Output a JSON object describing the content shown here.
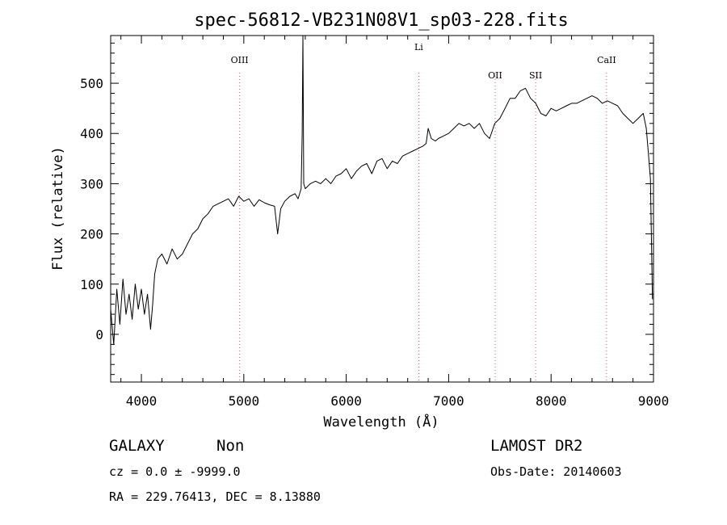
{
  "chart_data": {
    "type": "line",
    "title": "spec-56812-VB231N08V1_sp03-228.fits",
    "xlabel": "Wavelength (Å)",
    "ylabel": "Flux (relative)",
    "xlim": [
      3700,
      9000
    ],
    "ylim": [
      -95,
      595
    ],
    "x_ticks": [
      4000,
      5000,
      6000,
      7000,
      8000,
      9000
    ],
    "x_tick_labels": [
      "4000",
      "5000",
      "6000",
      "7000",
      "8000",
      "9000"
    ],
    "y_ticks": [
      0,
      100,
      200,
      300,
      400,
      500
    ],
    "y_tick_labels": [
      "0",
      "100",
      "200",
      "300",
      "400",
      "500"
    ],
    "grid": false,
    "series": [
      {
        "color": "#000000",
        "x": [
          3700,
          3730,
          3760,
          3790,
          3820,
          3850,
          3880,
          3910,
          3940,
          3970,
          4000,
          4030,
          4060,
          4090,
          4110,
          4130,
          4160,
          4200,
          4250,
          4300,
          4350,
          4400,
          4450,
          4500,
          4550,
          4600,
          4650,
          4700,
          4750,
          4800,
          4850,
          4900,
          4950,
          5000,
          5050,
          5100,
          5150,
          5200,
          5250,
          5300,
          5330,
          5360,
          5400,
          5450,
          5500,
          5530,
          5560,
          5570,
          5577,
          5585,
          5600,
          5650,
          5700,
          5750,
          5800,
          5850,
          5900,
          5950,
          6000,
          6050,
          6100,
          6150,
          6200,
          6250,
          6300,
          6350,
          6400,
          6450,
          6500,
          6550,
          6600,
          6650,
          6700,
          6750,
          6780,
          6800,
          6830,
          6870,
          6900,
          6950,
          7000,
          7050,
          7100,
          7150,
          7200,
          7250,
          7300,
          7350,
          7400,
          7450,
          7500,
          7550,
          7600,
          7650,
          7700,
          7750,
          7800,
          7850,
          7900,
          7950,
          8000,
          8050,
          8100,
          8150,
          8200,
          8250,
          8300,
          8350,
          8400,
          8450,
          8500,
          8550,
          8600,
          8650,
          8700,
          8750,
          8800,
          8850,
          8900,
          8930,
          8950,
          8970,
          8990
        ],
        "y": [
          50,
          -20,
          90,
          20,
          110,
          40,
          80,
          30,
          100,
          50,
          90,
          40,
          80,
          10,
          60,
          120,
          150,
          160,
          140,
          170,
          150,
          160,
          180,
          200,
          210,
          230,
          240,
          255,
          260,
          265,
          270,
          255,
          275,
          265,
          270,
          255,
          268,
          262,
          258,
          255,
          200,
          250,
          265,
          275,
          280,
          270,
          290,
          400,
          595,
          300,
          290,
          300,
          305,
          300,
          310,
          300,
          315,
          320,
          330,
          310,
          325,
          335,
          340,
          320,
          345,
          350,
          330,
          345,
          340,
          355,
          360,
          365,
          370,
          375,
          380,
          410,
          390,
          385,
          390,
          395,
          400,
          410,
          420,
          415,
          420,
          410,
          420,
          400,
          390,
          420,
          430,
          450,
          470,
          470,
          485,
          490,
          470,
          460,
          440,
          435,
          450,
          445,
          450,
          455,
          460,
          460,
          465,
          470,
          475,
          470,
          460,
          465,
          460,
          455,
          440,
          430,
          420,
          430,
          440,
          410,
          360,
          310,
          70
        ]
      }
    ],
    "annotations": [
      {
        "label": "OIII",
        "x": 4959
      },
      {
        "label": "Li",
        "x": 6708
      },
      {
        "label": "OII",
        "x": 7454
      },
      {
        "label": "SII",
        "x": 7849
      },
      {
        "label": "CaII",
        "x": 8542
      }
    ]
  },
  "footer": {
    "object_class": "GALAXY",
    "subclass": "Non",
    "survey": "LAMOST DR2",
    "cz_text": "cz = 0.0 ± -9999.0",
    "obs_date_text": "Obs-Date: 20140603",
    "radec_text": "RA = 229.76413, DEC =   8.13880"
  }
}
